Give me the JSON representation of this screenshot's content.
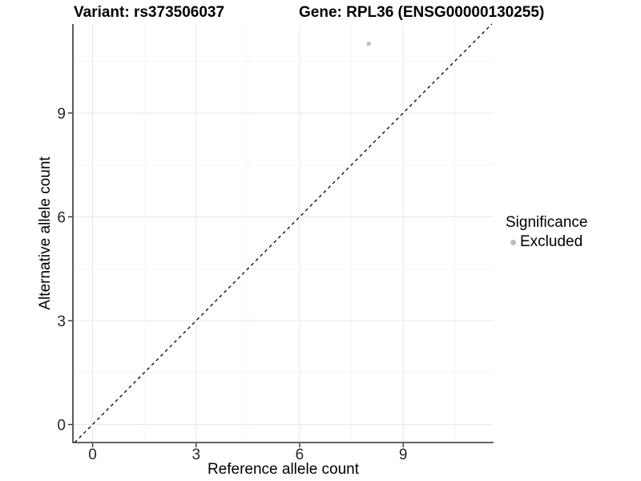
{
  "titles": {
    "left": "Variant: rs373506037",
    "right": "Gene: RPL36 (ENSG00000130255)"
  },
  "legend": {
    "title": "Significance",
    "items": [
      {
        "label": "Excluded",
        "color": "#bdbdbd",
        "marker": "circle"
      }
    ]
  },
  "chart_data": {
    "type": "scatter",
    "title": "Variant: rs373506037 / Gene: RPL36 (ENSG00000130255)",
    "xlabel": "Reference allele count",
    "ylabel": "Alternative allele count",
    "xlim": [
      -0.57,
      11.62
    ],
    "ylim": [
      -0.52,
      11.57
    ],
    "xticks": [
      0,
      3,
      6,
      9
    ],
    "yticks": [
      0,
      3,
      6,
      9
    ],
    "minor_gridlines": [
      1.5,
      4.5,
      7.5,
      10.5
    ],
    "grid": true,
    "legend_position": "right",
    "series": [
      {
        "name": "Excluded",
        "color": "#bdbdbd",
        "marker": "circle",
        "points": [
          {
            "x": 8,
            "y": 11
          }
        ]
      }
    ],
    "reference_line": {
      "type": "identity y=x",
      "style": "dashed",
      "color": "#000000"
    },
    "colors": {
      "background": "#ffffff",
      "grid_major": "#e8e8e8",
      "grid_minor": "#f4f4f4",
      "axis_line": "#333333",
      "tick_mark": "#333333",
      "tick_label": "#262626",
      "point": "#bdbdbd"
    }
  }
}
